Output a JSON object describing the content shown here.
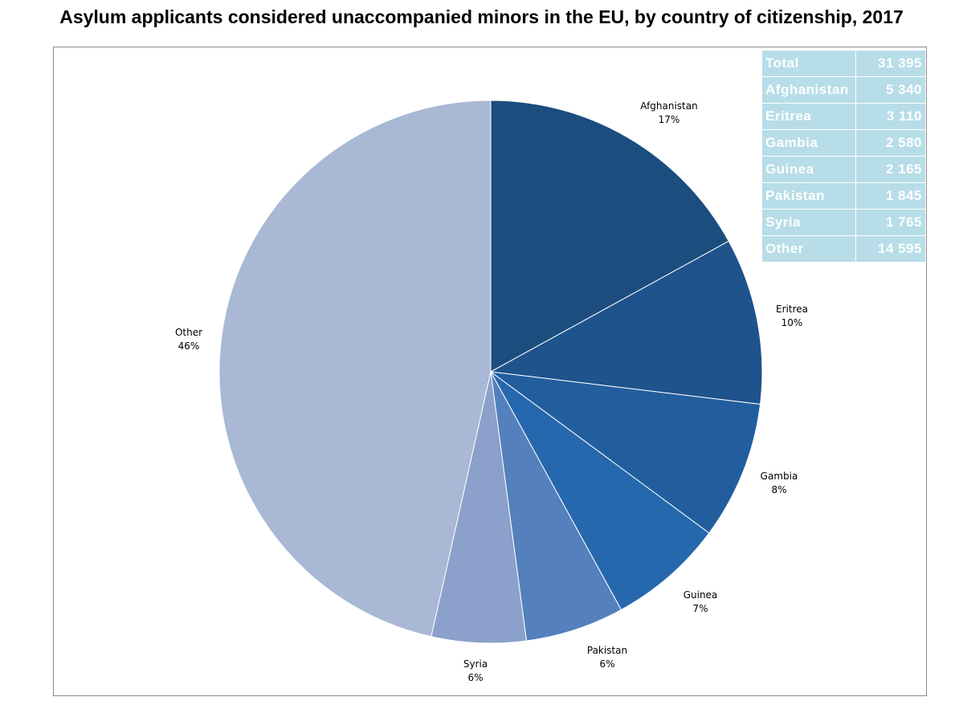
{
  "chart_data": {
    "type": "pie",
    "title": "Asylum applicants considered unaccompanied minors in the EU, by country of citizenship, 2017",
    "slices": [
      {
        "label": "Afghanistan",
        "percent_label": "17%",
        "value": 5340,
        "color": "#1b4d7e"
      },
      {
        "label": "Eritrea",
        "percent_label": "10%",
        "value": 3110,
        "color": "#1f538c"
      },
      {
        "label": "Gambia",
        "percent_label": "8%",
        "value": 2580,
        "color": "#225e9e"
      },
      {
        "label": "Guinea",
        "percent_label": "7%",
        "value": 2165,
        "color": "#2668ae"
      },
      {
        "label": "Pakistan",
        "percent_label": "6%",
        "value": 1845,
        "color": "#5480bd"
      },
      {
        "label": "Syria",
        "percent_label": "6%",
        "value": 1765,
        "color": "#8ba0ca"
      },
      {
        "label": "Other",
        "percent_label": "46%",
        "value": 14595,
        "color": "#a8b8d5"
      }
    ],
    "table": {
      "rows": [
        {
          "name": "Total",
          "value": "31 395"
        },
        {
          "name": "Afghanistan",
          "value": "5 340"
        },
        {
          "name": "Eritrea",
          "value": "3 110"
        },
        {
          "name": "Gambia",
          "value": "2 580"
        },
        {
          "name": "Guinea",
          "value": "2 165"
        },
        {
          "name": "Pakistan",
          "value": "1 845"
        },
        {
          "name": "Syria",
          "value": "1 765"
        },
        {
          "name": "Other",
          "value": "14 595"
        }
      ]
    },
    "legend": "none"
  }
}
